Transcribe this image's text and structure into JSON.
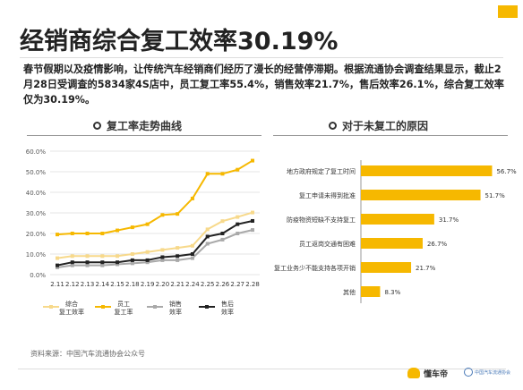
{
  "title": "经销商综合复工效率30.19%",
  "intro": "春节假期以及疫情影响，让传统汽车经销商们经历了漫长的经营停滞期。根据流通协会调查结果显示，截止2月28日受调查的5834家4S店中，员工复工率55.4%，销售效率21.7%，售后效率26.1%，综合复工效率仅为30.19%。",
  "source": "资料来源：中国汽车流通协会公众号",
  "footer_logo": "懂车帝",
  "footer_logo2": "中国汽车流通协会",
  "colors": {
    "accent": "#f6b800",
    "comprehensive": "#f7d98b",
    "staff": "#f6b800",
    "sales": "#a9a9a9",
    "aftersales": "#222222"
  },
  "chart_data": [
    {
      "type": "line",
      "title": "复工率走势曲线",
      "categories": [
        "2.11",
        "2.12",
        "2.13",
        "2.14",
        "2.15",
        "2.18",
        "2.19",
        "2.20",
        "2.21",
        "2.24",
        "2.25",
        "2.26",
        "2.27",
        "2.28"
      ],
      "ylim": [
        0,
        60
      ],
      "yticks": [
        "0.0%",
        "10.0%",
        "20.0%",
        "30.0%",
        "40.0%",
        "50.0%",
        "60.0%"
      ],
      "legend_position": "bottom",
      "series": [
        {
          "name": "综合复工效率",
          "legend_lines": [
            "综合",
            "复工效率"
          ],
          "color": "#f7d98b",
          "values": [
            8,
            9,
            9,
            9,
            9,
            10,
            11,
            12,
            13,
            14,
            22,
            26,
            28,
            30.19
          ]
        },
        {
          "name": "员工复工率",
          "legend_lines": [
            "员工",
            "复工率"
          ],
          "color": "#f6b800",
          "values": [
            19.5,
            20,
            20,
            20,
            21.5,
            23,
            24.5,
            29,
            29.5,
            37,
            49,
            49,
            51,
            55.4
          ]
        },
        {
          "name": "销售效率",
          "legend_lines": [
            "销售",
            "效率"
          ],
          "color": "#a9a9a9",
          "values": [
            3.5,
            4.5,
            4.5,
            4.5,
            5,
            5.5,
            6,
            7,
            7,
            8,
            15,
            17,
            20,
            21.7
          ]
        },
        {
          "name": "售后效率",
          "legend_lines": [
            "售后",
            "效率"
          ],
          "color": "#222222",
          "values": [
            4.5,
            6,
            6,
            6,
            6,
            7,
            7,
            8.5,
            9,
            10,
            18.5,
            20,
            24.5,
            26.1
          ]
        }
      ]
    },
    {
      "type": "bar",
      "orientation": "horizontal",
      "title": "对于未复工的原因",
      "categories": [
        "地方政府规定了复工时间",
        "复工申请未得到批准",
        "防疫物资短缺不支持复工",
        "员工返岗交通有困难",
        "复工业务少不能支持各项开销",
        "其他"
      ],
      "values": [
        56.7,
        51.7,
        31.7,
        26.7,
        21.7,
        8.3
      ],
      "labels": [
        "56.7%",
        "51.7%",
        "31.7%",
        "26.7%",
        "21.7%",
        "8.3%"
      ],
      "xlim": [
        0,
        60
      ]
    }
  ]
}
